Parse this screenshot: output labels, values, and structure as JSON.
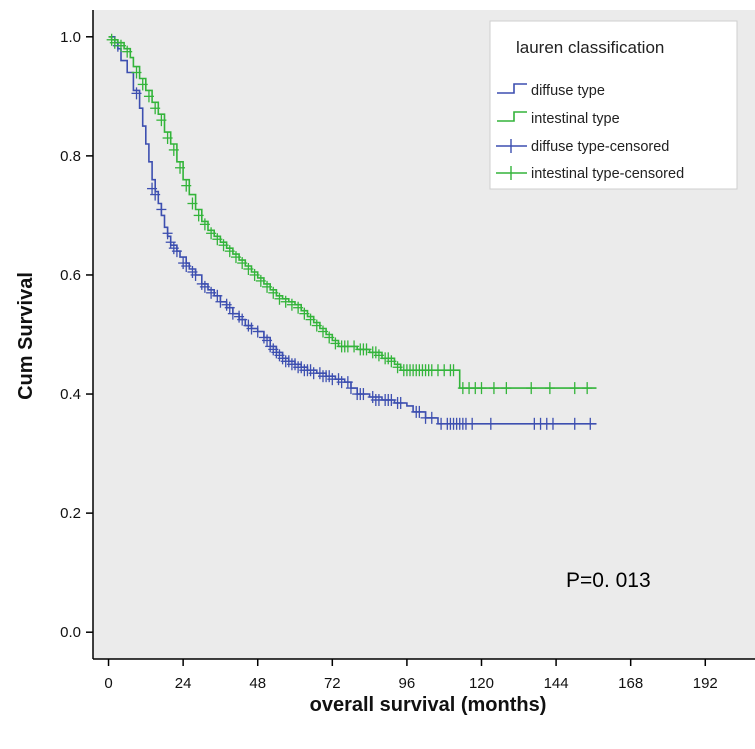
{
  "chart_data": {
    "type": "line",
    "title": "",
    "xlabel": "overall survival (months)",
    "ylabel": "Cum Survival",
    "xlim": [
      -5,
      208
    ],
    "ylim": [
      -0.045,
      1.045
    ],
    "x_ticks": [
      0,
      24,
      48,
      72,
      96,
      120,
      144,
      168,
      192
    ],
    "y_ticks": [
      "0.0",
      "0.2",
      "0.4",
      "0.6",
      "0.8",
      "1.0"
    ],
    "y_tick_values": [
      0.0,
      0.2,
      0.4,
      0.6,
      0.8,
      1.0
    ],
    "grid": false,
    "legend": {
      "title": "lauren classification",
      "position": "top-right",
      "entries": [
        "diffuse type",
        "intestinal type",
        "diffuse type-censored",
        "intestinal type-censored"
      ]
    },
    "annotation": "P=0. 013",
    "colors": {
      "plot_background": "#ebebeb",
      "diffuse": "#3d4fb0",
      "intestinal": "#33b43a"
    },
    "series": [
      {
        "name": "diffuse type",
        "color": "#3d4fb0",
        "step": [
          [
            0,
            1.0
          ],
          [
            2,
            0.99
          ],
          [
            3,
            0.98
          ],
          [
            4,
            0.96
          ],
          [
            6,
            0.94
          ],
          [
            8,
            0.91
          ],
          [
            10,
            0.88
          ],
          [
            11,
            0.85
          ],
          [
            12,
            0.82
          ],
          [
            13,
            0.79
          ],
          [
            14,
            0.76
          ],
          [
            15,
            0.74
          ],
          [
            16,
            0.72
          ],
          [
            17,
            0.7
          ],
          [
            18,
            0.68
          ],
          [
            19,
            0.665
          ],
          [
            20,
            0.65
          ],
          [
            22,
            0.64
          ],
          [
            23,
            0.63
          ],
          [
            25,
            0.62
          ],
          [
            26,
            0.61
          ],
          [
            28,
            0.6
          ],
          [
            30,
            0.585
          ],
          [
            32,
            0.575
          ],
          [
            34,
            0.565
          ],
          [
            36,
            0.555
          ],
          [
            38,
            0.545
          ],
          [
            40,
            0.535
          ],
          [
            42,
            0.525
          ],
          [
            44,
            0.515
          ],
          [
            46,
            0.51
          ],
          [
            48,
            0.505
          ],
          [
            50,
            0.495
          ],
          [
            52,
            0.48
          ],
          [
            54,
            0.47
          ],
          [
            56,
            0.46
          ],
          [
            58,
            0.455
          ],
          [
            60,
            0.45
          ],
          [
            62,
            0.445
          ],
          [
            64,
            0.44
          ],
          [
            67,
            0.435
          ],
          [
            70,
            0.43
          ],
          [
            73,
            0.425
          ],
          [
            76,
            0.42
          ],
          [
            78,
            0.41
          ],
          [
            80,
            0.4
          ],
          [
            84,
            0.395
          ],
          [
            88,
            0.39
          ],
          [
            92,
            0.385
          ],
          [
            96,
            0.38
          ],
          [
            98,
            0.37
          ],
          [
            102,
            0.36
          ],
          [
            106,
            0.35
          ],
          [
            140,
            0.35
          ],
          [
            157,
            0.35
          ]
        ],
        "censored": [
          [
            3,
            0.985
          ],
          [
            9,
            0.905
          ],
          [
            14,
            0.745
          ],
          [
            15,
            0.735
          ],
          [
            17,
            0.71
          ],
          [
            19,
            0.67
          ],
          [
            20,
            0.655
          ],
          [
            21,
            0.645
          ],
          [
            22,
            0.64
          ],
          [
            24,
            0.62
          ],
          [
            25,
            0.615
          ],
          [
            27,
            0.605
          ],
          [
            28,
            0.6
          ],
          [
            30,
            0.585
          ],
          [
            31,
            0.58
          ],
          [
            33,
            0.57
          ],
          [
            35,
            0.565
          ],
          [
            36,
            0.555
          ],
          [
            38,
            0.55
          ],
          [
            39,
            0.545
          ],
          [
            40,
            0.535
          ],
          [
            42,
            0.53
          ],
          [
            43,
            0.525
          ],
          [
            45,
            0.515
          ],
          [
            46,
            0.51
          ],
          [
            48,
            0.505
          ],
          [
            50,
            0.495
          ],
          [
            51,
            0.49
          ],
          [
            52,
            0.48
          ],
          [
            53,
            0.475
          ],
          [
            54,
            0.47
          ],
          [
            55,
            0.465
          ],
          [
            56,
            0.46
          ],
          [
            57,
            0.455
          ],
          [
            58,
            0.455
          ],
          [
            59,
            0.45
          ],
          [
            60,
            0.45
          ],
          [
            61,
            0.445
          ],
          [
            62,
            0.445
          ],
          [
            63,
            0.44
          ],
          [
            64,
            0.44
          ],
          [
            65,
            0.44
          ],
          [
            66,
            0.435
          ],
          [
            68,
            0.435
          ],
          [
            69,
            0.43
          ],
          [
            70,
            0.43
          ],
          [
            71,
            0.43
          ],
          [
            72,
            0.425
          ],
          [
            74,
            0.425
          ],
          [
            75,
            0.42
          ],
          [
            77,
            0.42
          ],
          [
            78,
            0.41
          ],
          [
            80,
            0.4
          ],
          [
            81,
            0.4
          ],
          [
            82,
            0.4
          ],
          [
            85,
            0.395
          ],
          [
            86,
            0.39
          ],
          [
            87,
            0.39
          ],
          [
            89,
            0.39
          ],
          [
            90,
            0.39
          ],
          [
            91,
            0.39
          ],
          [
            93,
            0.385
          ],
          [
            94,
            0.385
          ],
          [
            99,
            0.37
          ],
          [
            100,
            0.37
          ],
          [
            102,
            0.36
          ],
          [
            104,
            0.36
          ],
          [
            107,
            0.35
          ],
          [
            109,
            0.35
          ],
          [
            110,
            0.35
          ],
          [
            111,
            0.35
          ],
          [
            112,
            0.35
          ],
          [
            113,
            0.35
          ],
          [
            114,
            0.35
          ],
          [
            115,
            0.35
          ],
          [
            117,
            0.35
          ],
          [
            123,
            0.35
          ],
          [
            137,
            0.35
          ],
          [
            139,
            0.35
          ],
          [
            141,
            0.35
          ],
          [
            143,
            0.35
          ],
          [
            150,
            0.35
          ],
          [
            155,
            0.35
          ]
        ]
      },
      {
        "name": "intestinal type",
        "color": "#33b43a",
        "step": [
          [
            0,
            1.0
          ],
          [
            1,
            0.995
          ],
          [
            3,
            0.99
          ],
          [
            5,
            0.98
          ],
          [
            7,
            0.965
          ],
          [
            8,
            0.95
          ],
          [
            10,
            0.93
          ],
          [
            12,
            0.91
          ],
          [
            14,
            0.89
          ],
          [
            16,
            0.87
          ],
          [
            18,
            0.84
          ],
          [
            20,
            0.82
          ],
          [
            22,
            0.79
          ],
          [
            24,
            0.76
          ],
          [
            26,
            0.735
          ],
          [
            28,
            0.71
          ],
          [
            30,
            0.69
          ],
          [
            32,
            0.675
          ],
          [
            34,
            0.665
          ],
          [
            36,
            0.655
          ],
          [
            38,
            0.645
          ],
          [
            40,
            0.635
          ],
          [
            42,
            0.625
          ],
          [
            44,
            0.615
          ],
          [
            46,
            0.605
          ],
          [
            48,
            0.595
          ],
          [
            50,
            0.585
          ],
          [
            52,
            0.575
          ],
          [
            54,
            0.565
          ],
          [
            56,
            0.56
          ],
          [
            58,
            0.555
          ],
          [
            60,
            0.55
          ],
          [
            62,
            0.54
          ],
          [
            64,
            0.53
          ],
          [
            66,
            0.52
          ],
          [
            68,
            0.51
          ],
          [
            70,
            0.5
          ],
          [
            72,
            0.49
          ],
          [
            74,
            0.48
          ],
          [
            78,
            0.48
          ],
          [
            80,
            0.475
          ],
          [
            84,
            0.47
          ],
          [
            88,
            0.46
          ],
          [
            92,
            0.45
          ],
          [
            94,
            0.44
          ],
          [
            112,
            0.44
          ],
          [
            113,
            0.41
          ],
          [
            157,
            0.41
          ]
        ],
        "censored": [
          [
            1,
            0.995
          ],
          [
            2,
            0.99
          ],
          [
            4,
            0.985
          ],
          [
            6,
            0.975
          ],
          [
            9,
            0.94
          ],
          [
            11,
            0.92
          ],
          [
            13,
            0.9
          ],
          [
            15,
            0.88
          ],
          [
            17,
            0.86
          ],
          [
            19,
            0.83
          ],
          [
            21,
            0.81
          ],
          [
            23,
            0.78
          ],
          [
            25,
            0.75
          ],
          [
            27,
            0.72
          ],
          [
            29,
            0.7
          ],
          [
            31,
            0.685
          ],
          [
            33,
            0.67
          ],
          [
            35,
            0.66
          ],
          [
            37,
            0.65
          ],
          [
            39,
            0.64
          ],
          [
            41,
            0.63
          ],
          [
            43,
            0.62
          ],
          [
            45,
            0.61
          ],
          [
            47,
            0.6
          ],
          [
            49,
            0.59
          ],
          [
            51,
            0.58
          ],
          [
            53,
            0.57
          ],
          [
            55,
            0.56
          ],
          [
            57,
            0.555
          ],
          [
            59,
            0.55
          ],
          [
            61,
            0.545
          ],
          [
            63,
            0.535
          ],
          [
            65,
            0.525
          ],
          [
            67,
            0.515
          ],
          [
            69,
            0.505
          ],
          [
            71,
            0.495
          ],
          [
            73,
            0.485
          ],
          [
            75,
            0.48
          ],
          [
            76,
            0.48
          ],
          [
            77,
            0.48
          ],
          [
            79,
            0.48
          ],
          [
            81,
            0.475
          ],
          [
            82,
            0.475
          ],
          [
            83,
            0.475
          ],
          [
            85,
            0.47
          ],
          [
            86,
            0.47
          ],
          [
            87,
            0.465
          ],
          [
            89,
            0.46
          ],
          [
            90,
            0.46
          ],
          [
            91,
            0.455
          ],
          [
            93,
            0.445
          ],
          [
            95,
            0.44
          ],
          [
            96,
            0.44
          ],
          [
            97,
            0.44
          ],
          [
            98,
            0.44
          ],
          [
            99,
            0.44
          ],
          [
            100,
            0.44
          ],
          [
            101,
            0.44
          ],
          [
            102,
            0.44
          ],
          [
            103,
            0.44
          ],
          [
            104,
            0.44
          ],
          [
            106,
            0.44
          ],
          [
            108,
            0.44
          ],
          [
            110,
            0.44
          ],
          [
            111,
            0.44
          ],
          [
            114,
            0.41
          ],
          [
            116,
            0.41
          ],
          [
            118,
            0.41
          ],
          [
            120,
            0.41
          ],
          [
            124,
            0.41
          ],
          [
            128,
            0.41
          ],
          [
            136,
            0.41
          ],
          [
            142,
            0.41
          ],
          [
            150,
            0.41
          ],
          [
            154,
            0.41
          ]
        ]
      }
    ]
  }
}
